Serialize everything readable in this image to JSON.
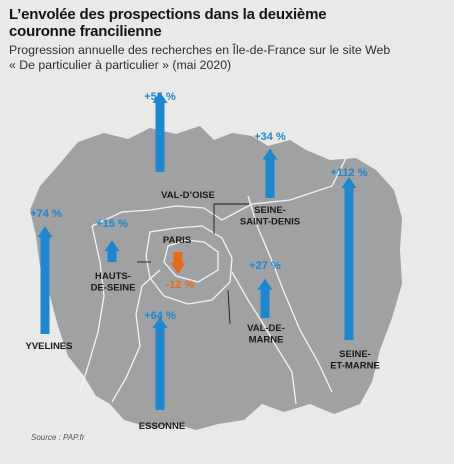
{
  "title_line1": "L’envolée des prospections dans la deuxième",
  "title_line2": "couronne francilienne",
  "subtitle_line1": "Progression annuelle des recherches en Île-de-France sur le site Web",
  "subtitle_line2": "« De particulier à particulier » (mai 2020)",
  "source": "Source : PAP.fr",
  "colors": {
    "up": "#1f86d0",
    "down": "#e66a1c",
    "map": "#9fa1a3",
    "border": "#f4f4f2",
    "text": "#1a1a1a"
  },
  "departments": [
    {
      "id": "val-doise",
      "label_lines": [
        "VAL-D’OISE"
      ],
      "value": 55,
      "value_label": "+55 %",
      "direction": "up"
    },
    {
      "id": "seine-saint-denis",
      "label_lines": [
        "SEINE-",
        "SAINT-DENIS"
      ],
      "value": 34,
      "value_label": "+34 %",
      "direction": "up"
    },
    {
      "id": "seine-et-marne",
      "label_lines": [
        "SEINE-",
        "ET-MARNE"
      ],
      "value": 112,
      "value_label": "+112 %",
      "direction": "up"
    },
    {
      "id": "yvelines",
      "label_lines": [
        "YVELINES"
      ],
      "value": 74,
      "value_label": "+74 %",
      "direction": "up"
    },
    {
      "id": "hauts-de-seine",
      "label_lines": [
        "HAUTS-",
        "DE-SEINE"
      ],
      "value": 15,
      "value_label": "+15 %",
      "direction": "up"
    },
    {
      "id": "paris",
      "label_lines": [
        "PARIS"
      ],
      "value": -12,
      "value_label": "-12 %",
      "direction": "down"
    },
    {
      "id": "val-de-marne",
      "label_lines": [
        "VAL-DE-",
        "MARNE"
      ],
      "value": 27,
      "value_label": "+27 %",
      "direction": "up"
    },
    {
      "id": "essonne",
      "label_lines": [
        "ESSONNE"
      ],
      "value": 64,
      "value_label": "+64 %",
      "direction": "up"
    }
  ]
}
